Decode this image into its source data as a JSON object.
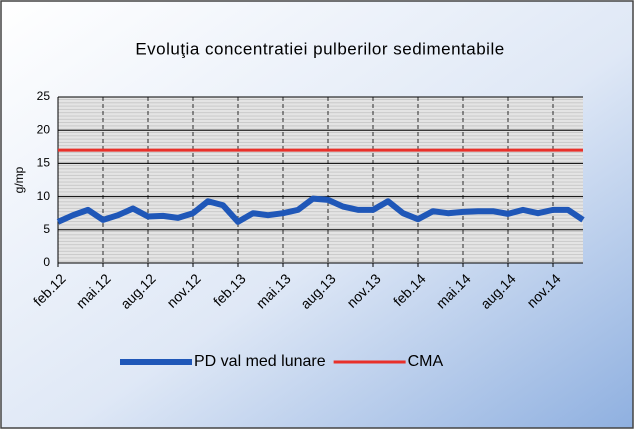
{
  "chart_data": {
    "type": "line",
    "title": "Evoluţia concentratiei pulberilor sedimentabile",
    "y_label": "g/mp",
    "categories": [
      "feb.12",
      null,
      null,
      "mai.12",
      null,
      null,
      "aug.12",
      null,
      null,
      "nov.12",
      null,
      null,
      "feb.13",
      null,
      null,
      "mai.13",
      null,
      null,
      "aug.13",
      null,
      null,
      "nov.13",
      null,
      null,
      "feb.14",
      null,
      null,
      "mai.14",
      null,
      null,
      "aug.14",
      null,
      null,
      "nov.14",
      null,
      null
    ],
    "series": [
      {
        "name": "PD val med lunare",
        "color": "#1f57b8",
        "values": [
          6.2,
          7.2,
          8,
          6.5,
          7.2,
          8.2,
          7,
          7.1,
          6.8,
          7.5,
          9.3,
          8.7,
          6.2,
          7.5,
          7.2,
          7.5,
          8,
          9.7,
          9.5,
          8.5,
          8,
          8,
          9.3,
          7.5,
          6.6,
          7.8,
          7.5,
          7.7,
          7.8,
          7.8,
          7.4,
          8,
          7.5,
          8,
          8,
          6.5
        ]
      },
      {
        "name": "CMA",
        "color": "#e8302a",
        "values": [
          17,
          17,
          17,
          17,
          17,
          17,
          17,
          17,
          17,
          17,
          17,
          17,
          17,
          17,
          17,
          17,
          17,
          17,
          17,
          17,
          17,
          17,
          17,
          17,
          17,
          17,
          17,
          17,
          17,
          17,
          17,
          17,
          17,
          17,
          17,
          17
        ]
      }
    ],
    "ylim": [
      0,
      25
    ],
    "yticks": [
      0,
      5,
      10,
      15,
      20,
      25
    ],
    "grid": true
  }
}
